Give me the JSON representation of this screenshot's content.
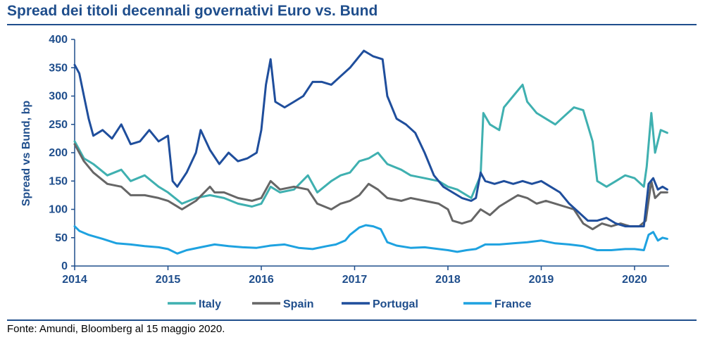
{
  "title": "Spread dei titoli decennali governativi Euro vs. Bund",
  "source": "Fonte: Amundi, Bloomberg al 15 maggio 2020.",
  "chart_data": {
    "type": "line",
    "title": "Spread dei titoli decennali governativi Euro vs. Bund",
    "xlabel": "",
    "ylabel": "Spread vs Bund, bp",
    "xlim": [
      2014.0,
      2020.37
    ],
    "ylim": [
      0,
      400
    ],
    "x_ticks": [
      "2014",
      "2015",
      "2016",
      "2017",
      "2018",
      "2019",
      "2020"
    ],
    "y_ticks": [
      0,
      50,
      100,
      150,
      200,
      250,
      300,
      350,
      400
    ],
    "grid": false,
    "legend": "bottom",
    "series": [
      {
        "name": "Italy",
        "color": "#3fb0b0",
        "points": [
          [
            2014.0,
            220
          ],
          [
            2014.1,
            190
          ],
          [
            2014.2,
            180
          ],
          [
            2014.35,
            160
          ],
          [
            2014.5,
            170
          ],
          [
            2014.6,
            150
          ],
          [
            2014.75,
            160
          ],
          [
            2014.9,
            140
          ],
          [
            2015.0,
            130
          ],
          [
            2015.15,
            110
          ],
          [
            2015.3,
            120
          ],
          [
            2015.45,
            125
          ],
          [
            2015.6,
            120
          ],
          [
            2015.75,
            110
          ],
          [
            2015.9,
            105
          ],
          [
            2016.0,
            110
          ],
          [
            2016.1,
            140
          ],
          [
            2016.2,
            130
          ],
          [
            2016.35,
            135
          ],
          [
            2016.5,
            160
          ],
          [
            2016.6,
            130
          ],
          [
            2016.75,
            150
          ],
          [
            2016.85,
            160
          ],
          [
            2016.95,
            165
          ],
          [
            2017.05,
            185
          ],
          [
            2017.15,
            190
          ],
          [
            2017.25,
            200
          ],
          [
            2017.35,
            180
          ],
          [
            2017.5,
            170
          ],
          [
            2017.6,
            160
          ],
          [
            2017.75,
            155
          ],
          [
            2017.9,
            150
          ],
          [
            2018.0,
            140
          ],
          [
            2018.1,
            135
          ],
          [
            2018.25,
            120
          ],
          [
            2018.35,
            160
          ],
          [
            2018.38,
            270
          ],
          [
            2018.45,
            250
          ],
          [
            2018.55,
            240
          ],
          [
            2018.6,
            280
          ],
          [
            2018.7,
            300
          ],
          [
            2018.8,
            320
          ],
          [
            2018.85,
            290
          ],
          [
            2018.95,
            270
          ],
          [
            2019.05,
            260
          ],
          [
            2019.15,
            250
          ],
          [
            2019.25,
            265
          ],
          [
            2019.35,
            280
          ],
          [
            2019.45,
            275
          ],
          [
            2019.55,
            220
          ],
          [
            2019.6,
            150
          ],
          [
            2019.7,
            140
          ],
          [
            2019.8,
            150
          ],
          [
            2019.9,
            160
          ],
          [
            2020.0,
            155
          ],
          [
            2020.1,
            140
          ],
          [
            2020.13,
            175
          ],
          [
            2020.18,
            270
          ],
          [
            2020.22,
            200
          ],
          [
            2020.28,
            240
          ],
          [
            2020.35,
            235
          ]
        ]
      },
      {
        "name": "Spain",
        "color": "#666666",
        "points": [
          [
            2014.0,
            215
          ],
          [
            2014.1,
            185
          ],
          [
            2014.2,
            165
          ],
          [
            2014.35,
            145
          ],
          [
            2014.5,
            140
          ],
          [
            2014.6,
            125
          ],
          [
            2014.75,
            125
          ],
          [
            2014.9,
            120
          ],
          [
            2015.0,
            115
          ],
          [
            2015.15,
            100
          ],
          [
            2015.3,
            115
          ],
          [
            2015.45,
            140
          ],
          [
            2015.5,
            130
          ],
          [
            2015.6,
            130
          ],
          [
            2015.75,
            120
          ],
          [
            2015.9,
            115
          ],
          [
            2016.0,
            120
          ],
          [
            2016.1,
            150
          ],
          [
            2016.2,
            135
          ],
          [
            2016.35,
            140
          ],
          [
            2016.5,
            135
          ],
          [
            2016.6,
            110
          ],
          [
            2016.75,
            100
          ],
          [
            2016.85,
            110
          ],
          [
            2016.95,
            115
          ],
          [
            2017.05,
            125
          ],
          [
            2017.15,
            145
          ],
          [
            2017.25,
            135
          ],
          [
            2017.35,
            120
          ],
          [
            2017.5,
            115
          ],
          [
            2017.6,
            120
          ],
          [
            2017.75,
            115
          ],
          [
            2017.9,
            110
          ],
          [
            2018.0,
            100
          ],
          [
            2018.05,
            80
          ],
          [
            2018.15,
            75
          ],
          [
            2018.25,
            80
          ],
          [
            2018.35,
            100
          ],
          [
            2018.45,
            90
          ],
          [
            2018.55,
            105
          ],
          [
            2018.65,
            115
          ],
          [
            2018.75,
            125
          ],
          [
            2018.85,
            120
          ],
          [
            2018.95,
            110
          ],
          [
            2019.05,
            115
          ],
          [
            2019.15,
            110
          ],
          [
            2019.25,
            105
          ],
          [
            2019.35,
            100
          ],
          [
            2019.45,
            75
          ],
          [
            2019.55,
            65
          ],
          [
            2019.65,
            75
          ],
          [
            2019.75,
            70
          ],
          [
            2019.85,
            75
          ],
          [
            2019.95,
            70
          ],
          [
            2020.05,
            70
          ],
          [
            2020.12,
            80
          ],
          [
            2020.18,
            150
          ],
          [
            2020.22,
            120
          ],
          [
            2020.28,
            130
          ],
          [
            2020.35,
            130
          ]
        ]
      },
      {
        "name": "Portugal",
        "color": "#1f4e9c",
        "points": [
          [
            2014.0,
            355
          ],
          [
            2014.05,
            340
          ],
          [
            2014.1,
            300
          ],
          [
            2014.15,
            260
          ],
          [
            2014.2,
            230
          ],
          [
            2014.3,
            240
          ],
          [
            2014.4,
            225
          ],
          [
            2014.5,
            250
          ],
          [
            2014.6,
            215
          ],
          [
            2014.7,
            220
          ],
          [
            2014.8,
            240
          ],
          [
            2014.9,
            220
          ],
          [
            2015.0,
            230
          ],
          [
            2015.05,
            150
          ],
          [
            2015.1,
            140
          ],
          [
            2015.2,
            165
          ],
          [
            2015.3,
            200
          ],
          [
            2015.35,
            240
          ],
          [
            2015.45,
            205
          ],
          [
            2015.55,
            180
          ],
          [
            2015.65,
            200
          ],
          [
            2015.75,
            185
          ],
          [
            2015.85,
            190
          ],
          [
            2015.95,
            200
          ],
          [
            2016.0,
            240
          ],
          [
            2016.05,
            320
          ],
          [
            2016.1,
            365
          ],
          [
            2016.15,
            290
          ],
          [
            2016.25,
            280
          ],
          [
            2016.35,
            290
          ],
          [
            2016.45,
            300
          ],
          [
            2016.55,
            325
          ],
          [
            2016.65,
            325
          ],
          [
            2016.75,
            320
          ],
          [
            2016.85,
            335
          ],
          [
            2016.95,
            350
          ],
          [
            2017.05,
            370
          ],
          [
            2017.1,
            380
          ],
          [
            2017.2,
            370
          ],
          [
            2017.3,
            365
          ],
          [
            2017.35,
            300
          ],
          [
            2017.45,
            260
          ],
          [
            2017.55,
            250
          ],
          [
            2017.65,
            235
          ],
          [
            2017.75,
            200
          ],
          [
            2017.85,
            160
          ],
          [
            2017.95,
            140
          ],
          [
            2018.05,
            130
          ],
          [
            2018.15,
            120
          ],
          [
            2018.25,
            115
          ],
          [
            2018.3,
            120
          ],
          [
            2018.35,
            165
          ],
          [
            2018.4,
            150
          ],
          [
            2018.5,
            145
          ],
          [
            2018.6,
            150
          ],
          [
            2018.7,
            145
          ],
          [
            2018.8,
            150
          ],
          [
            2018.9,
            145
          ],
          [
            2019.0,
            150
          ],
          [
            2019.1,
            140
          ],
          [
            2019.2,
            130
          ],
          [
            2019.3,
            110
          ],
          [
            2019.4,
            95
          ],
          [
            2019.5,
            80
          ],
          [
            2019.6,
            80
          ],
          [
            2019.7,
            85
          ],
          [
            2019.8,
            75
          ],
          [
            2019.9,
            70
          ],
          [
            2020.0,
            70
          ],
          [
            2020.1,
            70
          ],
          [
            2020.15,
            145
          ],
          [
            2020.2,
            155
          ],
          [
            2020.25,
            135
          ],
          [
            2020.3,
            140
          ],
          [
            2020.35,
            135
          ]
        ]
      },
      {
        "name": "France",
        "color": "#1ea2e0",
        "points": [
          [
            2014.0,
            70
          ],
          [
            2014.05,
            62
          ],
          [
            2014.15,
            55
          ],
          [
            2014.3,
            48
          ],
          [
            2014.45,
            40
          ],
          [
            2014.6,
            38
          ],
          [
            2014.75,
            35
          ],
          [
            2014.9,
            33
          ],
          [
            2015.0,
            30
          ],
          [
            2015.1,
            22
          ],
          [
            2015.2,
            28
          ],
          [
            2015.35,
            33
          ],
          [
            2015.5,
            38
          ],
          [
            2015.65,
            35
          ],
          [
            2015.8,
            33
          ],
          [
            2015.95,
            32
          ],
          [
            2016.1,
            36
          ],
          [
            2016.25,
            38
          ],
          [
            2016.4,
            32
          ],
          [
            2016.55,
            30
          ],
          [
            2016.7,
            35
          ],
          [
            2016.8,
            38
          ],
          [
            2016.9,
            45
          ],
          [
            2016.95,
            55
          ],
          [
            2017.05,
            68
          ],
          [
            2017.12,
            72
          ],
          [
            2017.2,
            70
          ],
          [
            2017.28,
            65
          ],
          [
            2017.35,
            42
          ],
          [
            2017.45,
            36
          ],
          [
            2017.6,
            32
          ],
          [
            2017.75,
            33
          ],
          [
            2017.9,
            30
          ],
          [
            2018.0,
            28
          ],
          [
            2018.1,
            25
          ],
          [
            2018.2,
            28
          ],
          [
            2018.3,
            30
          ],
          [
            2018.4,
            38
          ],
          [
            2018.55,
            38
          ],
          [
            2018.7,
            40
          ],
          [
            2018.85,
            42
          ],
          [
            2019.0,
            45
          ],
          [
            2019.15,
            40
          ],
          [
            2019.3,
            38
          ],
          [
            2019.45,
            35
          ],
          [
            2019.6,
            28
          ],
          [
            2019.75,
            28
          ],
          [
            2019.9,
            30
          ],
          [
            2020.0,
            30
          ],
          [
            2020.1,
            28
          ],
          [
            2020.15,
            55
          ],
          [
            2020.2,
            60
          ],
          [
            2020.25,
            45
          ],
          [
            2020.3,
            50
          ],
          [
            2020.35,
            48
          ]
        ]
      }
    ]
  }
}
